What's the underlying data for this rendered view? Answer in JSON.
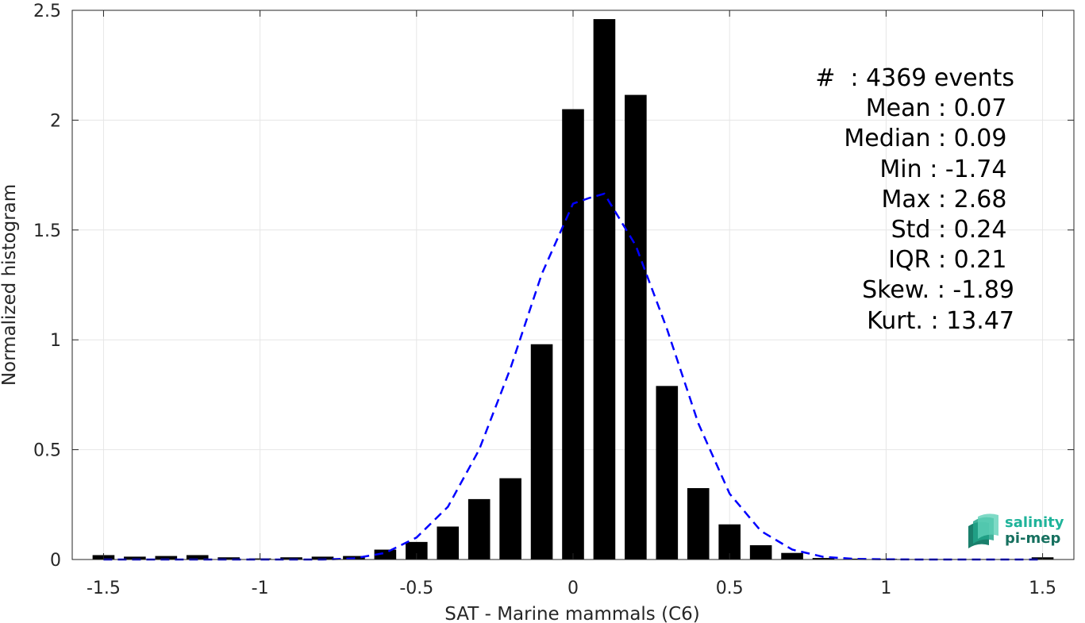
{
  "chart_data": {
    "type": "bar",
    "xlabel": "SAT - Marine mammals (C6)",
    "ylabel": "Normalized histogram",
    "xlim": [
      -1.6,
      1.6
    ],
    "ylim": [
      0,
      2.5
    ],
    "xticks": [
      -1.5,
      -1,
      -0.5,
      0,
      0.5,
      1,
      1.5
    ],
    "xtick_labels": [
      "-1.5",
      "-1",
      "-0.5",
      "0",
      "0.5",
      "1",
      "1.5"
    ],
    "yticks": [
      0,
      0.5,
      1,
      1.5,
      2,
      2.5
    ],
    "ytick_labels": [
      "0",
      "0.5",
      "1",
      "1.5",
      "2",
      "2.5"
    ],
    "grid": true,
    "bar_width": 0.07,
    "bars": {
      "x": [
        -1.5,
        -1.4,
        -1.3,
        -1.2,
        -1.1,
        -1.0,
        -0.9,
        -0.8,
        -0.7,
        -0.6,
        -0.5,
        -0.4,
        -0.3,
        -0.2,
        -0.1,
        0.0,
        0.1,
        0.2,
        0.3,
        0.4,
        0.5,
        0.6,
        0.7,
        0.8,
        0.9,
        1.0,
        1.1,
        1.2,
        1.3,
        1.4,
        1.5
      ],
      "values": [
        0.02,
        0.013,
        0.016,
        0.02,
        0.01,
        0.005,
        0.01,
        0.013,
        0.016,
        0.045,
        0.08,
        0.15,
        0.275,
        0.37,
        0.98,
        2.05,
        2.46,
        2.115,
        0.79,
        0.325,
        0.16,
        0.065,
        0.03,
        0.007,
        0.004,
        0.003,
        0.002,
        0.002,
        0.002,
        0.002,
        0.01
      ]
    },
    "fit_curve": {
      "style": "dashed",
      "color": "#0000ff",
      "x": [
        -1.5,
        -1.4,
        -1.3,
        -1.2,
        -1.1,
        -1.0,
        -0.9,
        -0.8,
        -0.7,
        -0.6,
        -0.5,
        -0.4,
        -0.3,
        -0.2,
        -0.1,
        0.0,
        0.05,
        0.1,
        0.2,
        0.3,
        0.4,
        0.5,
        0.6,
        0.7,
        0.8,
        0.9,
        1.0,
        1.1,
        1.2,
        1.3,
        1.4,
        1.5
      ],
      "y": [
        0.0,
        0.0,
        0.0,
        0.0,
        0.0,
        0.0,
        0.0,
        0.0,
        0.005,
        0.03,
        0.1,
        0.24,
        0.5,
        0.87,
        1.3,
        1.62,
        1.645,
        1.665,
        1.43,
        1.05,
        0.62,
        0.3,
        0.13,
        0.045,
        0.012,
        0.003,
        0.001,
        0.0,
        0.0,
        0.0,
        0.0,
        0.0
      ]
    },
    "bar_color": "#000000"
  },
  "stats": [
    "#  : 4369 events",
    "Mean : 0.07 ",
    "Median : 0.09 ",
    "Min : -1.74 ",
    "Max : 2.68 ",
    "Std : 0.24 ",
    "IQR : 0.21 ",
    "Skew. : -1.89",
    "Kurt. : 13.47"
  ],
  "logo": {
    "line1": "salinity",
    "line2": "pi-mep"
  }
}
